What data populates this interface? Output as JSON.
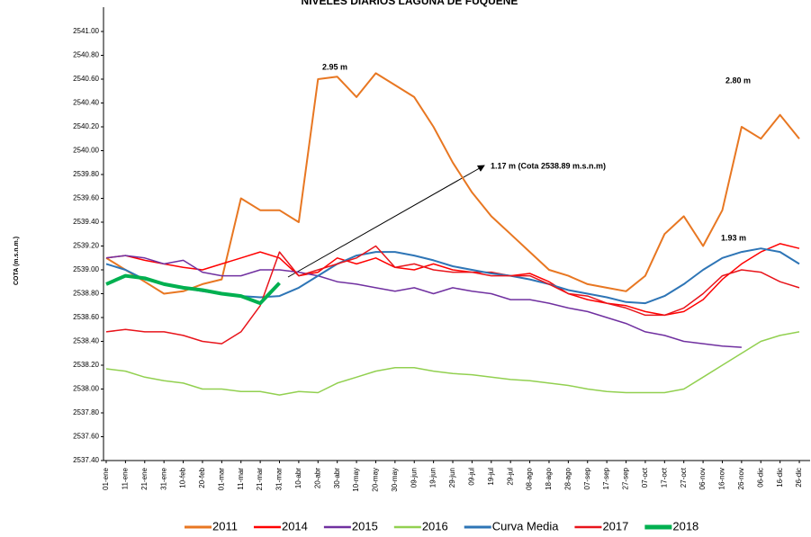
{
  "chart_data": {
    "type": "line",
    "title": "NIVELES DIARIOS LAGUNA DE FUQUENE",
    "y_label": "COTA (m.s.n.m.)",
    "categories": [
      "01-ene",
      "11-ene",
      "21-ene",
      "31-ene",
      "10-feb",
      "20-feb",
      "01-mar",
      "11-mar",
      "21-mar",
      "31-mar",
      "10-abr",
      "20-abr",
      "30-abr",
      "10-may",
      "20-may",
      "30-may",
      "09-jun",
      "19-jun",
      "29-jun",
      "09-jul",
      "19-jul",
      "29-jul",
      "08-ago",
      "18-ago",
      "28-ago",
      "07-sep",
      "17-sep",
      "27-sep",
      "07-oct",
      "17-oct",
      "27-oct",
      "06-nov",
      "16-nov",
      "26-nov",
      "06-dic",
      "16-dic",
      "26-dic"
    ],
    "series": [
      {
        "name": "2011",
        "color": "#e87722",
        "width": 2,
        "values": [
          2539.1,
          2539.0,
          2538.9,
          2538.8,
          2538.82,
          2538.88,
          2538.92,
          2539.6,
          2539.5,
          2539.5,
          2539.4,
          2540.6,
          2540.62,
          2540.45,
          2540.65,
          2540.55,
          2540.45,
          2540.2,
          2539.9,
          2539.65,
          2539.45,
          2539.3,
          2539.15,
          2539.0,
          2538.95,
          2538.88,
          2538.85,
          2538.82,
          2538.95,
          2539.3,
          2539.45,
          2539.2,
          2539.5,
          2540.2,
          2540.1,
          2540.3,
          2540.1
        ]
      },
      {
        "name": "2014",
        "color": "#ff0000",
        "width": 1.5,
        "values": [
          2539.1,
          2539.12,
          2539.08,
          2539.05,
          2539.02,
          2539.0,
          2539.05,
          2539.1,
          2539.15,
          2539.1,
          2538.95,
          2538.98,
          2539.1,
          2539.05,
          2539.1,
          2539.02,
          2539.0,
          2539.05,
          2539.0,
          2538.98,
          2538.98,
          2538.95,
          2538.97,
          2538.9,
          2538.8,
          2538.75,
          2538.72,
          2538.7,
          2538.65,
          2538.62,
          2538.65,
          2538.75,
          2538.92,
          2539.05,
          2539.15,
          2539.22,
          2539.18
        ]
      },
      {
        "name": "2015",
        "color": "#7030a0",
        "width": 1.5,
        "values": [
          2539.1,
          2539.12,
          2539.1,
          2539.05,
          2539.08,
          2538.98,
          2538.95,
          2538.95,
          2539.0,
          2539.0,
          2538.98,
          2538.95,
          2538.9,
          2538.88,
          2538.85,
          2538.82,
          2538.85,
          2538.8,
          2538.85,
          2538.82,
          2538.8,
          2538.75,
          2538.75,
          2538.72,
          2538.68,
          2538.65,
          2538.6,
          2538.55,
          2538.48,
          2538.45,
          2538.4,
          2538.38,
          2538.36,
          2538.35,
          null,
          null,
          null
        ]
      },
      {
        "name": "2016",
        "color": "#92d050",
        "width": 1.5,
        "values": [
          2538.17,
          2538.15,
          2538.1,
          2538.07,
          2538.05,
          2538.0,
          2538.0,
          2537.98,
          2537.98,
          2537.95,
          2537.98,
          2537.97,
          2538.05,
          2538.1,
          2538.15,
          2538.18,
          2538.18,
          2538.15,
          2538.13,
          2538.12,
          2538.1,
          2538.08,
          2538.07,
          2538.05,
          2538.03,
          2538.0,
          2537.98,
          2537.97,
          2537.97,
          2537.97,
          2538.0,
          2538.1,
          2538.2,
          2538.3,
          2538.4,
          2538.45,
          2538.48
        ]
      },
      {
        "name": "Curva Media",
        "color": "#2e75b6",
        "width": 2,
        "values": [
          2539.05,
          2539.0,
          2538.92,
          2538.88,
          2538.85,
          2538.82,
          2538.8,
          2538.78,
          2538.77,
          2538.78,
          2538.85,
          2538.95,
          2539.05,
          2539.12,
          2539.15,
          2539.15,
          2539.12,
          2539.08,
          2539.03,
          2539.0,
          2538.97,
          2538.95,
          2538.92,
          2538.88,
          2538.83,
          2538.8,
          2538.77,
          2538.73,
          2538.72,
          2538.78,
          2538.88,
          2539.0,
          2539.1,
          2539.15,
          2539.18,
          2539.15,
          2539.05
        ]
      },
      {
        "name": "2017",
        "color": "#e8141b",
        "width": 1.5,
        "values": [
          2538.48,
          2538.5,
          2538.48,
          2538.48,
          2538.45,
          2538.4,
          2538.38,
          2538.48,
          2538.7,
          2539.15,
          2538.95,
          2539.0,
          2539.05,
          2539.1,
          2539.2,
          2539.02,
          2539.05,
          2539.0,
          2538.98,
          2538.98,
          2538.95,
          2538.95,
          2538.95,
          2538.88,
          2538.8,
          2538.78,
          2538.72,
          2538.68,
          2538.62,
          2538.62,
          2538.68,
          2538.8,
          2538.95,
          2539.0,
          2538.98,
          2538.9,
          2538.85
        ]
      },
      {
        "name": "2018",
        "color": "#00b050",
        "width": 4,
        "values": [
          2538.88,
          2538.95,
          2538.93,
          2538.88,
          2538.85,
          2538.83,
          2538.8,
          2538.78,
          2538.72,
          2538.89,
          null,
          null,
          null,
          null,
          null,
          null,
          null,
          null,
          null,
          null,
          null,
          null,
          null,
          null,
          null,
          null,
          null,
          null,
          null,
          null,
          null,
          null,
          null,
          null,
          null,
          null,
          null
        ]
      }
    ],
    "annotations": [
      "2.95 m",
      "2.80 m",
      "1.93 m",
      "1.17 m (Cota 2538.89 m.s.n.m)"
    ],
    "ylim": [
      2537.4,
      2541.2
    ],
    "yticks": [
      {
        "value": 2537.4,
        "label": "2537.40"
      },
      {
        "value": 2537.6,
        "label": "2537.60"
      },
      {
        "value": 2537.8,
        "label": "2537.80"
      },
      {
        "value": 2538.0,
        "label": "2538.00"
      },
      {
        "value": 2538.2,
        "label": "2538.20"
      },
      {
        "value": 2538.4,
        "label": "2538.40"
      },
      {
        "value": 2538.6,
        "label": "2538.60"
      },
      {
        "value": 2538.8,
        "label": "2538.80"
      },
      {
        "value": 2539.0,
        "label": "2539.00"
      },
      {
        "value": 2539.2,
        "label": "2539.20"
      },
      {
        "value": 2539.4,
        "label": "2539.40"
      },
      {
        "value": 2539.6,
        "label": "2539.60"
      },
      {
        "value": 2539.8,
        "label": "2539.80"
      },
      {
        "value": 2540.0,
        "label": "2540.00"
      },
      {
        "value": 2540.2,
        "label": "2540.20"
      },
      {
        "value": 2540.4,
        "label": "2540.40"
      },
      {
        "value": 2540.6,
        "label": "2540.60"
      },
      {
        "value": 2540.8,
        "label": "2540.80"
      },
      {
        "value": 2541.0,
        "label": "2541.00"
      }
    ],
    "grid": false
  }
}
